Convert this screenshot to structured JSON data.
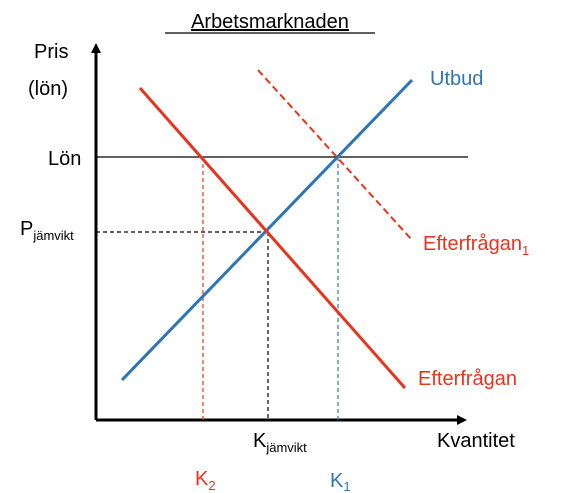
{
  "title": "Arbetsmarknaden",
  "y_axis": {
    "label_lines": [
      "Pris",
      "(lön)"
    ]
  },
  "x_axis": {
    "label": "Kvantitet"
  },
  "wage_line": {
    "label": "Lön"
  },
  "supply": {
    "label": "Utbud"
  },
  "demand": {
    "label": "Efterfrågan"
  },
  "demand_shifted": {
    "label": {
      "main": "Efterfrågan",
      "sub": "1"
    }
  },
  "equilibrium_price": {
    "main": "P",
    "sub": "jämvikt"
  },
  "equilibrium_quantity": {
    "main": "K",
    "sub": "jämvikt"
  },
  "quantity_demanded": {
    "main": "K",
    "sub": "2"
  },
  "quantity_supplied": {
    "main": "K",
    "sub": "1"
  }
}
